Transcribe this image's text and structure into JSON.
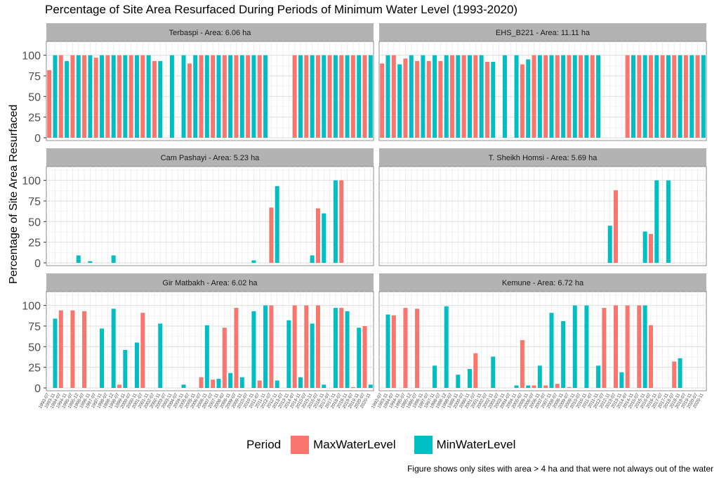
{
  "title": "Percentage of Site Area Resurfaced During Periods of Minimum Water Level (1993-2020)",
  "caption": "Figure shows only sites with area > 4 ha and that were not always out of the water",
  "colors": {
    "MaxWaterLevel": "#F8766D",
    "MinWaterLevel": "#00BFC4"
  },
  "chart_data": {
    "type": "bar",
    "ylabel": "Percentage of Site Area Resurfaced",
    "ylim": [
      0,
      115
    ],
    "yticks": [
      0,
      25,
      50,
      75,
      100
    ],
    "legend": {
      "title": "Period",
      "position": "bottom",
      "entries": [
        "MaxWaterLevel",
        "MinWaterLevel"
      ]
    },
    "grid": true,
    "categories": [
      "1993-07",
      "1993-11",
      "1994-07",
      "1994-11",
      "1995-07",
      "1995-12",
      "1996-07",
      "1996-11",
      "1997-07",
      "1997-11",
      "1998-07",
      "1998-12",
      "1999-07",
      "1999-11",
      "2000-07",
      "2000-11",
      "2001-07",
      "2001-11",
      "2002-07",
      "2002-11",
      "2003-07",
      "2003-11",
      "2004-07",
      "2004-11",
      "2005-07",
      "2005-11",
      "2006-07",
      "2006-11",
      "2007-07",
      "2007-11",
      "2008-07",
      "2008-11",
      "2009-07",
      "2009-11",
      "2010-07",
      "2010-11",
      "2011-07",
      "2011-11",
      "2012-07",
      "2012-11",
      "2013-07",
      "2013-11",
      "2014-07",
      "2014-11",
      "2015-07",
      "2015-11",
      "2016-07",
      "2016-11",
      "2017-07",
      "2017-11",
      "2018-07",
      "2018-11",
      "2019-07",
      "2019-11",
      "2020-07",
      "2020-11"
    ],
    "tick_labels": [
      "1993-07",
      "1993-11",
      "1994-07",
      "1994-11",
      "1995-07",
      "1995-12",
      "1996-07",
      "1996-11",
      "1997-07",
      "1997-11",
      "1998-07",
      "1998-12",
      "1999-07",
      "1999-11",
      "2000-07",
      "2000-11",
      "2001-07",
      "2001-11",
      "2002-07",
      "2002-11",
      "2003-07",
      "2003-11",
      "2004-07",
      "2004-11",
      "2005-07",
      "2005-11",
      "2006-07",
      "2006-11",
      "2007-07",
      "2007-11",
      "2008-07",
      "2008-11",
      "2009-07",
      "2009-11",
      "2010-07",
      "2010-11",
      "2011-07",
      "2011-11",
      "2012-07",
      "2012-11",
      "2013-07",
      "2013-11",
      "2014-07",
      "2014-11",
      "2015-07",
      "2015-11",
      "2016-07",
      "2016-11",
      "2017-07",
      "2017-11",
      "2018-07",
      "2018-11",
      "2019-07",
      "2019-11",
      "2020-07",
      "2020-11"
    ],
    "periods": [
      "MaxWaterLevel",
      "MinWaterLevel",
      "MaxWaterLevel",
      "MinWaterLevel",
      "MaxWaterLevel",
      "MinWaterLevel",
      "MaxWaterLevel",
      "MinWaterLevel",
      "MaxWaterLevel",
      "MinWaterLevel",
      "MaxWaterLevel",
      "MinWaterLevel",
      "MaxWaterLevel",
      "MinWaterLevel",
      "MaxWaterLevel",
      "MinWaterLevel",
      "MaxWaterLevel",
      "MinWaterLevel",
      "MaxWaterLevel",
      "MinWaterLevel",
      "MaxWaterLevel",
      "MinWaterLevel",
      "MaxWaterLevel",
      "MinWaterLevel",
      "MaxWaterLevel",
      "MinWaterLevel",
      "MaxWaterLevel",
      "MinWaterLevel",
      "MaxWaterLevel",
      "MinWaterLevel",
      "MaxWaterLevel",
      "MinWaterLevel",
      "MaxWaterLevel",
      "MinWaterLevel",
      "MaxWaterLevel",
      "MinWaterLevel",
      "MaxWaterLevel",
      "MinWaterLevel",
      "MaxWaterLevel",
      "MinWaterLevel",
      "MaxWaterLevel",
      "MinWaterLevel",
      "MaxWaterLevel",
      "MinWaterLevel",
      "MaxWaterLevel",
      "MinWaterLevel",
      "MaxWaterLevel",
      "MinWaterLevel",
      "MaxWaterLevel",
      "MinWaterLevel",
      "MaxWaterLevel",
      "MinWaterLevel",
      "MaxWaterLevel",
      "MinWaterLevel",
      "MaxWaterLevel",
      "MinWaterLevel"
    ],
    "facets": [
      {
        "title": "Terbaspi - Area: 6.06 ha",
        "values": [
          82,
          100,
          100,
          93,
          100,
          100,
          100,
          100,
          97,
          100,
          100,
          100,
          100,
          100,
          100,
          100,
          100,
          100,
          93,
          93,
          null,
          100,
          null,
          100,
          90,
          100,
          100,
          100,
          100,
          100,
          100,
          100,
          100,
          100,
          100,
          100,
          100,
          100,
          null,
          null,
          null,
          null,
          100,
          100,
          100,
          100,
          100,
          100,
          100,
          100,
          100,
          100,
          100,
          100,
          100,
          100
        ]
      },
      {
        "title": "EHS_B221 - Area: 11.11 ha",
        "values": [
          90,
          100,
          100,
          89,
          96,
          100,
          93,
          100,
          93,
          100,
          93,
          100,
          100,
          100,
          100,
          100,
          100,
          100,
          92,
          92,
          null,
          100,
          null,
          100,
          89,
          95,
          100,
          100,
          100,
          100,
          100,
          100,
          100,
          100,
          100,
          100,
          100,
          100,
          null,
          null,
          null,
          null,
          100,
          100,
          100,
          100,
          100,
          100,
          100,
          100,
          100,
          100,
          100,
          100,
          100,
          100
        ]
      },
      {
        "title": "Cam Pashayi - Area: 5.23 ha",
        "values": [
          null,
          null,
          null,
          null,
          null,
          9,
          null,
          2,
          null,
          null,
          null,
          9,
          null,
          null,
          null,
          null,
          null,
          null,
          null,
          null,
          null,
          null,
          null,
          null,
          null,
          null,
          null,
          null,
          null,
          null,
          null,
          null,
          null,
          null,
          null,
          null,
          null,
          null,
          null,
          null,
          null,
          null,
          null,
          null,
          null,
          null,
          null,
          null,
          null,
          null,
          null,
          null,
          null,
          null,
          null,
          null
        ]
      },
      {
        "title": "T. Sheikh Homsi - Area: 5.69 ha",
        "values": []
      },
      {
        "title": "Gir Matbakh - Area: 6.02 ha",
        "values": []
      },
      {
        "title": "Kemune - Area: 6.72 ha",
        "values": []
      }
    ]
  }
}
